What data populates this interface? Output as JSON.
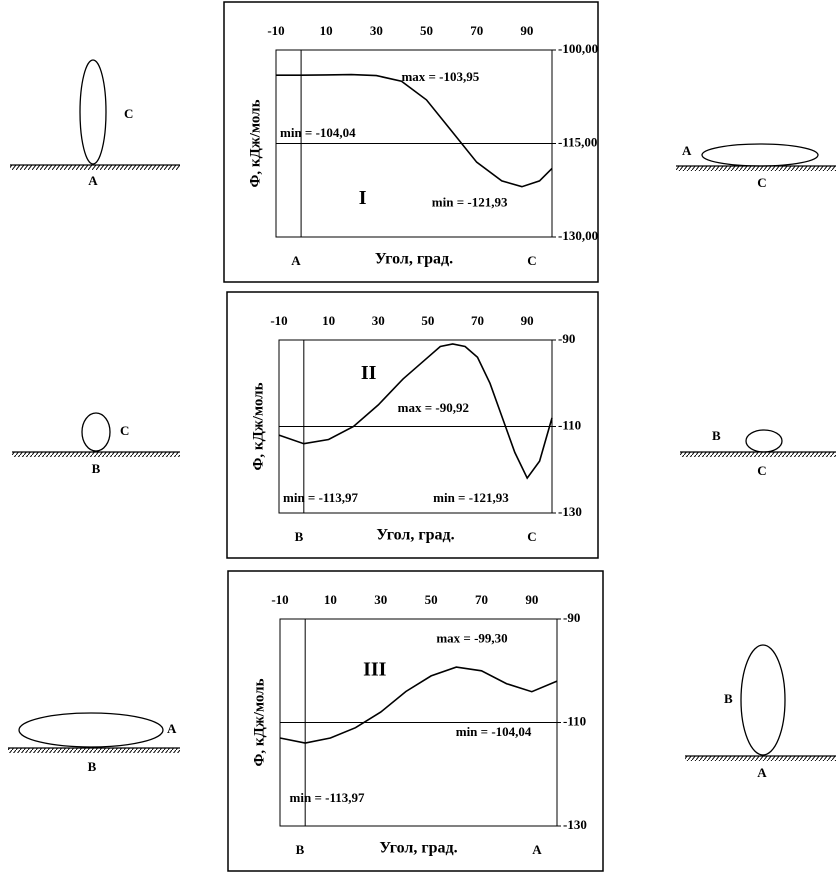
{
  "chart_data": [
    {
      "type": "line",
      "title": "I",
      "xlabel": "Угол, град.",
      "ylabel": "Ф, кДж/моль",
      "corner_labels": [
        "A",
        "C"
      ],
      "annotations": [
        "max = -103,95",
        "min = -104,04",
        "min = -121,93"
      ],
      "xlim": [
        -10,
        100
      ],
      "xticks": [
        -10,
        10,
        30,
        50,
        70,
        90
      ],
      "ylim": [
        -130,
        -100
      ],
      "yticks": [
        {
          "value": -100,
          "label": "-100,00"
        },
        {
          "value": -115,
          "label": "-115,00"
        },
        {
          "value": -130,
          "label": "-130,00"
        }
      ],
      "axis_lines": {
        "x": 0,
        "y": -115
      },
      "color": "#000000",
      "x": [
        -10,
        0,
        10,
        20,
        30,
        40,
        50,
        60,
        70,
        80,
        88,
        95,
        100
      ],
      "values": [
        -104.04,
        -104.04,
        -104.0,
        -103.95,
        -104.1,
        -105,
        -108,
        -113,
        -118,
        -121,
        -121.93,
        -121,
        -119
      ]
    },
    {
      "type": "line",
      "title": "II",
      "xlabel": "Угол, град.",
      "ylabel": "Ф, кДж/моль",
      "corner_labels": [
        "B",
        "C"
      ],
      "annotations": [
        "max = -90,92",
        "min = -113,97",
        "min = -121,93"
      ],
      "xlim": [
        -10,
        100
      ],
      "xticks": [
        -10,
        10,
        30,
        50,
        70,
        90
      ],
      "ylim": [
        -130,
        -90
      ],
      "yticks": [
        -90,
        -110,
        -130
      ],
      "axis_lines": {
        "x": 0,
        "y": -110
      },
      "color": "#000000",
      "x": [
        -10,
        0,
        10,
        20,
        30,
        40,
        50,
        55,
        60,
        65,
        70,
        75,
        80,
        85,
        90,
        95,
        100
      ],
      "values": [
        -112,
        -113.97,
        -113,
        -110,
        -105,
        -99,
        -94,
        -91.5,
        -90.92,
        -91.5,
        -94,
        -100,
        -108,
        -116,
        -121.93,
        -118,
        -108
      ]
    },
    {
      "type": "line",
      "title": "III",
      "xlabel": "Угол, град.",
      "ylabel": "Ф, кДж/моль",
      "corner_labels": [
        "B",
        "A"
      ],
      "annotations": [
        "max = -99,30",
        "min = -104,04",
        "min = -113,97"
      ],
      "xlim": [
        -10,
        100
      ],
      "xticks": [
        -10,
        10,
        30,
        50,
        70,
        90
      ],
      "ylim": [
        -130,
        -90
      ],
      "yticks": [
        -90,
        -110,
        -130
      ],
      "axis_lines": {
        "x": 0,
        "y": -110
      },
      "color": "#000000",
      "x": [
        -10,
        0,
        10,
        20,
        30,
        40,
        50,
        60,
        70,
        80,
        90,
        100
      ],
      "values": [
        -113,
        -113.97,
        -113,
        -111,
        -108,
        -104,
        -101,
        -99.3,
        -100,
        -102.5,
        -104.04,
        -102
      ]
    }
  ],
  "diagrams": [
    {
      "labels": [
        "C",
        "A"
      ]
    },
    {
      "labels": [
        "A",
        "C"
      ]
    },
    {
      "labels": [
        "C",
        "B"
      ]
    },
    {
      "labels": [
        "B",
        "C"
      ]
    },
    {
      "labels": [
        "A",
        "B"
      ]
    },
    {
      "labels": [
        "B",
        "A"
      ]
    }
  ]
}
